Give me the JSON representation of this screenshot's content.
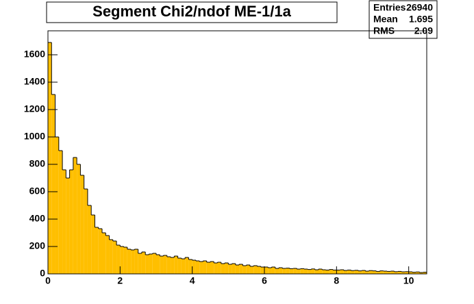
{
  "chart_data": {
    "type": "histogram",
    "title": "Segment Chi2/ndof ME-1/1a",
    "stats": [
      {
        "label": "Entries",
        "value": 26940
      },
      {
        "label": "Mean",
        "value": 1.695
      },
      {
        "label": "RMS",
        "value": 2.09
      }
    ],
    "bins": [
      0,
      0.1,
      0.2,
      0.3,
      0.4,
      0.5,
      0.6,
      0.7,
      0.8,
      0.9,
      1,
      1.1,
      1.2,
      1.3,
      1.4,
      1.5,
      1.6,
      1.7,
      1.8,
      1.9,
      2,
      2.1,
      2.2,
      2.3,
      2.4,
      2.5,
      2.6,
      2.7,
      2.8,
      2.9,
      3,
      3.1,
      3.2,
      3.3,
      3.4,
      3.5,
      3.6,
      3.7,
      3.8,
      3.9,
      4,
      4.1,
      4.2,
      4.3,
      4.4,
      4.5,
      4.6,
      4.7,
      4.8,
      4.9,
      5,
      5.1,
      5.2,
      5.3,
      5.4,
      5.5,
      5.6,
      5.7,
      5.8,
      5.9,
      6,
      6.1,
      6.2,
      6.3,
      6.4,
      6.5,
      6.6,
      6.7,
      6.8,
      6.9,
      7,
      7.1,
      7.2,
      7.3,
      7.4,
      7.5,
      7.6,
      7.7,
      7.8,
      7.9,
      8,
      8.1,
      8.2,
      8.3,
      8.4,
      8.5,
      8.6,
      8.7,
      8.8,
      8.9,
      9,
      9.1,
      9.2,
      9.3,
      9.4,
      9.5,
      9.6,
      9.7,
      9.8,
      9.9,
      10,
      10.1,
      10.2,
      10.3,
      10.4,
      10.5
    ],
    "counts": [
      1690,
      1310,
      1000,
      900,
      760,
      700,
      760,
      850,
      800,
      720,
      620,
      500,
      430,
      340,
      330,
      300,
      280,
      250,
      240,
      210,
      200,
      195,
      180,
      175,
      180,
      150,
      160,
      140,
      145,
      150,
      140,
      130,
      135,
      125,
      120,
      130,
      115,
      110,
      120,
      105,
      100,
      95,
      90,
      95,
      85,
      90,
      80,
      85,
      75,
      80,
      70,
      75,
      65,
      70,
      60,
      65,
      55,
      60,
      55,
      50,
      50,
      45,
      50,
      40,
      45,
      40,
      42,
      38,
      40,
      35,
      38,
      35,
      32,
      36,
      30,
      35,
      30,
      28,
      32,
      28,
      28,
      30,
      25,
      28,
      24,
      26,
      22,
      25,
      20,
      24,
      22,
      18,
      22,
      20,
      18,
      20,
      16,
      18,
      15,
      16,
      15,
      12,
      14,
      10,
      12
    ],
    "color": "#ffbf00",
    "xlim": [
      0,
      10.5
    ],
    "ylim": [
      0,
      1775
    ],
    "xticks": [
      0,
      2,
      4,
      6,
      8,
      10
    ],
    "yticks": [
      0,
      200,
      400,
      600,
      800,
      1000,
      1200,
      1400,
      1600
    ]
  }
}
